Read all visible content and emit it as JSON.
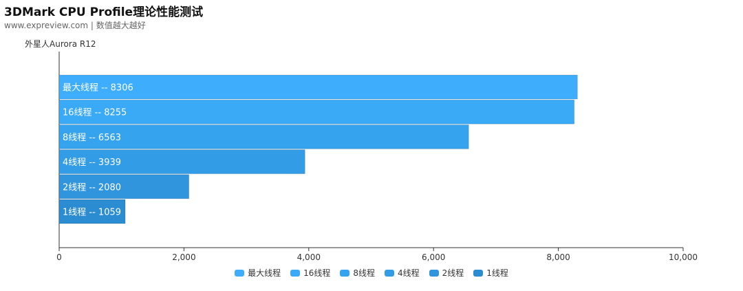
{
  "header": {
    "title": "3DMark CPU Profile理论性能测试",
    "subtitle": "www.expreview.com | 数值越大越好",
    "device_label": "外星人Aurora R12"
  },
  "chart_data": {
    "type": "bar",
    "orientation": "horizontal",
    "title": "3DMark CPU Profile理论性能测试",
    "subtitle": "www.expreview.com | 数值越大越好",
    "ylabel": "外星人Aurora R12",
    "xlabel": "",
    "xlim": [
      0,
      10000
    ],
    "x_ticks": [
      "0",
      "2,000",
      "4,000",
      "6,000",
      "8,000",
      "10,000"
    ],
    "legend_position": "bottom-center",
    "categories": [
      "最大线程",
      "16线程",
      "8线程",
      "4线程",
      "2线程",
      "1线程"
    ],
    "values": [
      8306,
      8255,
      6563,
      3939,
      2080,
      1059
    ],
    "data_labels": [
      "最大线程  --  8306",
      "16线程  --  8255",
      "8线程  --  6563",
      "4线程  --  3939",
      "2线程  --  2080",
      "1线程  --  1059"
    ],
    "colors": [
      "#3eaefc",
      "#3aa9f6",
      "#36a3ee",
      "#339ce6",
      "#3095dd",
      "#2b8cd2"
    ]
  }
}
